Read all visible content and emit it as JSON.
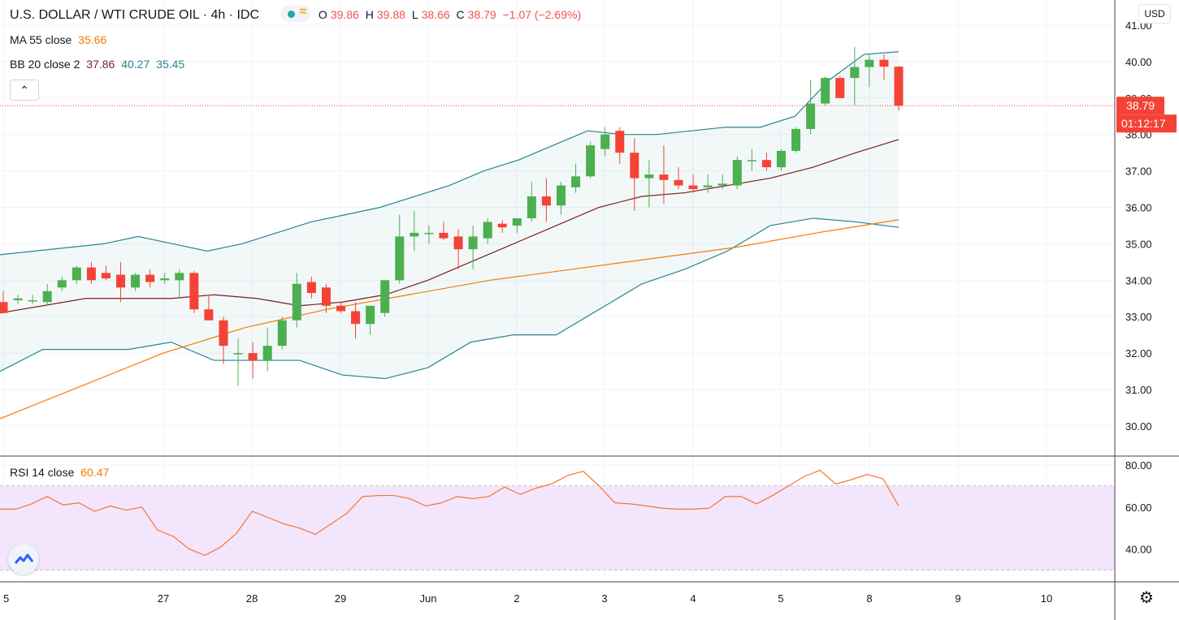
{
  "header": {
    "title": "U.S. DOLLAR / WTI CRUDE OIL · 4h · IDC",
    "ohlc": {
      "o_label": "O",
      "o": "39.86",
      "h_label": "H",
      "h": "39.88",
      "l_label": "L",
      "l": "38.66",
      "c_label": "C",
      "c": "38.79",
      "change": "−1.07 (−2.69%)"
    }
  },
  "indicators": {
    "ma": {
      "label": "MA 55 close",
      "value": "35.66"
    },
    "bb": {
      "label": "BB 20 close 2",
      "basis": "37.86",
      "upper": "40.27",
      "lower": "35.45"
    },
    "rsi": {
      "label": "RSI 14 close",
      "value": "60.47"
    }
  },
  "currency": "USD",
  "price_marker": {
    "price": "38.79",
    "countdown": "01:12:17"
  },
  "colors": {
    "up": "#4caf50",
    "down": "#f44336",
    "upper_band": "#26868f",
    "basis": "#7b1f1f",
    "ma": "#f57c00",
    "rsi": "#f4762e",
    "rsi_zone": "#f3e5fc"
  },
  "chart_data": [
    {
      "type": "candlestick",
      "title": "U.S. DOLLAR / WTI CRUDE OIL · 4h · IDC",
      "x_tick_labels": [
        "5",
        "27",
        "28",
        "29",
        "Jun",
        "2",
        "3",
        "4",
        "5",
        "8",
        "9",
        "10"
      ],
      "y_ticks": [
        "30.00",
        "31.00",
        "32.00",
        "33.00",
        "34.00",
        "35.00",
        "36.00",
        "37.00",
        "38.00",
        "39.00",
        "40.00",
        "41.00"
      ],
      "ylim": [
        29.2,
        41.3
      ],
      "candles_ohlc": [
        [
          33.4,
          33.7,
          33.1,
          33.1
        ],
        [
          33.45,
          33.6,
          33.35,
          33.5
        ],
        [
          33.45,
          33.6,
          33.35,
          33.45
        ],
        [
          33.4,
          33.9,
          33.3,
          33.7
        ],
        [
          33.8,
          34.1,
          33.7,
          34.0
        ],
        [
          34.0,
          34.4,
          33.9,
          34.35
        ],
        [
          34.35,
          34.5,
          33.9,
          34.0
        ],
        [
          34.2,
          34.4,
          34.0,
          34.05
        ],
        [
          34.15,
          34.5,
          33.4,
          33.8
        ],
        [
          33.8,
          34.2,
          33.7,
          34.15
        ],
        [
          34.15,
          34.3,
          33.8,
          33.95
        ],
        [
          34.0,
          34.2,
          33.9,
          34.05
        ],
        [
          34.0,
          34.3,
          33.5,
          34.2
        ],
        [
          34.2,
          34.25,
          33.1,
          33.2
        ],
        [
          33.2,
          33.6,
          32.9,
          32.9
        ],
        [
          32.9,
          33.0,
          31.7,
          32.2
        ],
        [
          32.0,
          32.4,
          31.1,
          32.0
        ],
        [
          32.0,
          32.3,
          31.3,
          31.8
        ],
        [
          31.8,
          32.7,
          31.5,
          32.2
        ],
        [
          32.2,
          33.0,
          32.1,
          32.9
        ],
        [
          32.9,
          34.2,
          32.7,
          33.9
        ],
        [
          33.95,
          34.1,
          33.5,
          33.65
        ],
        [
          33.8,
          33.9,
          33.1,
          33.3
        ],
        [
          33.3,
          33.4,
          33.1,
          33.15
        ],
        [
          33.15,
          33.4,
          32.4,
          32.8
        ],
        [
          32.8,
          33.3,
          32.5,
          33.3
        ],
        [
          33.1,
          34.0,
          33.0,
          34.0
        ],
        [
          34.0,
          35.8,
          33.9,
          35.2
        ],
        [
          35.2,
          35.9,
          34.8,
          35.3
        ],
        [
          35.3,
          35.5,
          35.0,
          35.3
        ],
        [
          35.3,
          35.6,
          35.1,
          35.15
        ],
        [
          35.2,
          35.4,
          34.3,
          34.85
        ],
        [
          34.85,
          35.5,
          34.3,
          35.2
        ],
        [
          35.15,
          35.7,
          35.0,
          35.6
        ],
        [
          35.55,
          35.65,
          35.3,
          35.45
        ],
        [
          35.5,
          35.7,
          35.3,
          35.7
        ],
        [
          35.7,
          36.7,
          35.6,
          36.3
        ],
        [
          36.3,
          36.8,
          35.6,
          36.05
        ],
        [
          36.05,
          36.7,
          35.8,
          36.6
        ],
        [
          36.55,
          37.2,
          36.4,
          36.85
        ],
        [
          36.85,
          37.8,
          36.8,
          37.7
        ],
        [
          37.6,
          38.2,
          37.4,
          38.0
        ],
        [
          38.1,
          38.2,
          37.2,
          37.5
        ],
        [
          37.5,
          37.9,
          35.9,
          36.8
        ],
        [
          36.8,
          37.3,
          36.0,
          36.9
        ],
        [
          36.9,
          37.7,
          36.1,
          36.75
        ],
        [
          36.75,
          37.1,
          36.5,
          36.6
        ],
        [
          36.6,
          36.9,
          36.4,
          36.5
        ],
        [
          36.55,
          36.9,
          36.4,
          36.6
        ],
        [
          36.6,
          36.9,
          36.5,
          36.65
        ],
        [
          36.6,
          37.4,
          36.5,
          37.3
        ],
        [
          37.3,
          37.6,
          37.0,
          37.3
        ],
        [
          37.3,
          37.5,
          37.0,
          37.1
        ],
        [
          37.1,
          37.6,
          37.0,
          37.55
        ],
        [
          37.55,
          38.2,
          37.5,
          38.15
        ],
        [
          38.15,
          39.5,
          38.0,
          38.85
        ],
        [
          38.85,
          39.6,
          38.8,
          39.55
        ],
        [
          39.55,
          39.6,
          39.0,
          39.0
        ],
        [
          39.55,
          40.4,
          38.8,
          39.85
        ],
        [
          39.85,
          40.2,
          39.3,
          40.05
        ],
        [
          40.05,
          40.2,
          39.5,
          39.86
        ],
        [
          39.86,
          39.88,
          38.66,
          38.79
        ]
      ],
      "last_price": 38.79,
      "bb_upper": [
        34.7,
        34.8,
        34.9,
        35.0,
        35.2,
        35.0,
        34.8,
        35.0,
        35.3,
        35.6,
        35.8,
        36.0,
        36.3,
        36.6,
        37.0,
        37.3,
        37.7,
        38.1,
        38.0,
        38.0,
        38.1,
        38.2,
        38.2,
        38.5,
        39.5,
        40.2,
        40.27
      ],
      "bb_basis": [
        33.1,
        33.3,
        33.5,
        33.5,
        33.5,
        33.6,
        33.5,
        33.3,
        33.4,
        33.6,
        34.0,
        34.5,
        35.0,
        35.5,
        36.0,
        36.3,
        36.4,
        36.6,
        36.8,
        37.1,
        37.5,
        37.86
      ],
      "bb_lower": [
        31.5,
        32.1,
        32.1,
        32.1,
        32.3,
        31.8,
        31.8,
        31.8,
        31.4,
        31.3,
        31.6,
        32.3,
        32.5,
        32.5,
        33.2,
        33.9,
        34.3,
        34.8,
        35.5,
        35.7,
        35.6,
        35.45
      ],
      "ma55": [
        30.2,
        31.1,
        32.0,
        32.7,
        33.2,
        33.6,
        34.0,
        34.3,
        34.6,
        34.9,
        35.3,
        35.66
      ]
    },
    {
      "type": "line",
      "title": "RSI 14 close",
      "y_ticks": [
        "40.00",
        "60.00",
        "80.00"
      ],
      "ylim": [
        27,
        82
      ],
      "upper_band": 70,
      "lower_band": 30,
      "values": [
        59,
        59,
        61.5,
        65,
        61,
        62,
        58,
        60.5,
        58.5,
        60,
        49,
        46,
        40,
        37,
        41,
        47.5,
        58,
        55,
        52,
        50,
        47,
        52,
        57,
        65,
        65.5,
        65.5,
        64,
        60.5,
        62,
        65,
        64,
        65,
        69.5,
        66,
        69,
        71,
        75,
        77,
        70,
        62,
        61.5,
        60.5,
        59.5,
        59,
        59,
        59.5,
        65,
        65,
        61.5,
        65.5,
        70,
        74.5,
        77.5,
        71,
        73,
        75.5,
        73.5,
        60.47
      ]
    }
  ]
}
